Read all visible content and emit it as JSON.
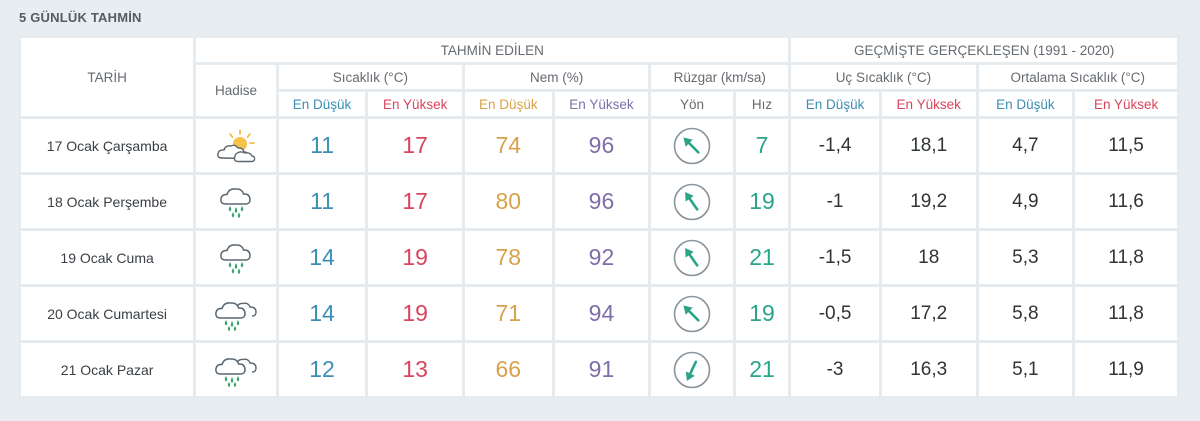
{
  "title": "5 GÜNLÜK TAHMİN",
  "headers": {
    "date": "TARİH",
    "hadise": "Hadise",
    "forecast_group": "TAHMİN EDİLEN",
    "history_group": "GEÇMİŞTE GERÇEKLEŞEN (1991 - 2020)",
    "temp": "Sıcaklık (°C)",
    "humidity": "Nem (%)",
    "wind": "Rüzgar (km/sa)",
    "extreme_temp": "Uç Sıcaklık (°C)",
    "avg_temp": "Ortalama Sıcaklık (°C)",
    "low": "En Düşük",
    "high": "En Yüksek",
    "direction": "Yön",
    "speed": "Hız"
  },
  "colors": {
    "low": "#3b8fb4",
    "high": "#d8455d",
    "humidity_low": "#d7a24b",
    "humidity_high": "#7f6fa8",
    "wind": "#2aa388"
  },
  "rows": [
    {
      "date": "17 Ocak Çarşamba",
      "icon": "partly-cloudy-sun-icon",
      "temp_low": "11",
      "temp_high": "17",
      "hum_low": "74",
      "hum_high": "96",
      "wind_dir_deg": 315,
      "wind_speed": "7",
      "ext_low": "-1,4",
      "ext_high": "18,1",
      "avg_low": "4,7",
      "avg_high": "11,5"
    },
    {
      "date": "18 Ocak Perşembe",
      "icon": "rain-cloud-icon",
      "temp_low": "11",
      "temp_high": "17",
      "hum_low": "80",
      "hum_high": "96",
      "wind_dir_deg": 325,
      "wind_speed": "19",
      "ext_low": "-1",
      "ext_high": "19,2",
      "avg_low": "4,9",
      "avg_high": "11,6"
    },
    {
      "date": "19 Ocak Cuma",
      "icon": "rain-cloud-icon",
      "temp_low": "14",
      "temp_high": "19",
      "hum_low": "78",
      "hum_high": "92",
      "wind_dir_deg": 325,
      "wind_speed": "21",
      "ext_low": "-1,5",
      "ext_high": "18",
      "avg_low": "5,3",
      "avg_high": "11,8"
    },
    {
      "date": "20 Ocak Cumartesi",
      "icon": "heavy-rain-cloud-icon",
      "temp_low": "14",
      "temp_high": "19",
      "hum_low": "71",
      "hum_high": "94",
      "wind_dir_deg": 315,
      "wind_speed": "19",
      "ext_low": "-0,5",
      "ext_high": "17,2",
      "avg_low": "5,8",
      "avg_high": "11,8"
    },
    {
      "date": "21 Ocak Pazar",
      "icon": "heavy-rain-cloud-icon",
      "temp_low": "12",
      "temp_high": "13",
      "hum_low": "66",
      "hum_high": "91",
      "wind_dir_deg": 205,
      "wind_speed": "21",
      "ext_low": "-3",
      "ext_high": "16,3",
      "avg_low": "5,1",
      "avg_high": "11,9"
    }
  ]
}
